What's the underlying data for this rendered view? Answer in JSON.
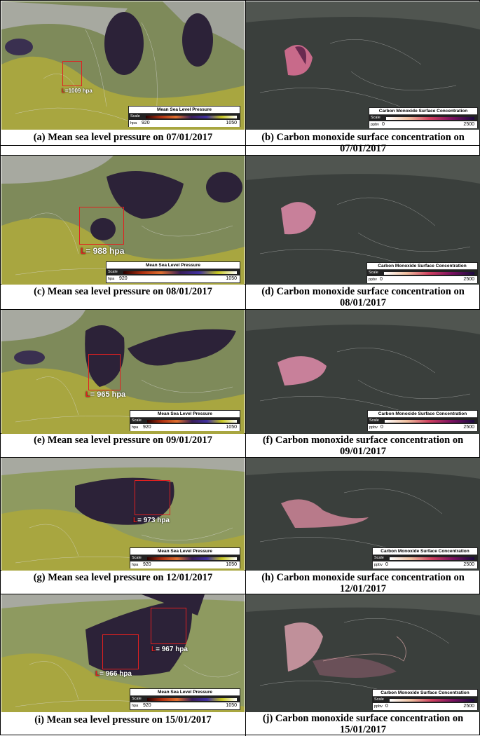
{
  "legends": {
    "mslp": {
      "title": "Mean Sea Level Pressure",
      "scale": "Scale",
      "unit": "hpa",
      "min": "920",
      "max": "1050"
    },
    "co": {
      "title": "Carbon Monoxide Surface Concentration",
      "scale": "Scale",
      "unit": "ppbv",
      "min": "0",
      "max": "2500"
    }
  },
  "rows": [
    {
      "left_caption": "(a) Mean sea level pressure on 07/01/2017",
      "right_caption": "(b) Carbon monoxide surface concentration on 07/01/2017",
      "annotations": [
        {
          "letter": "L",
          "text": "=1009 hpa"
        }
      ]
    },
    {
      "left_caption": "(c) Mean sea level pressure on 08/01/2017",
      "right_caption": "(d) Carbon monoxide surface concentration on 08/01/2017",
      "annotations": [
        {
          "letter": "L",
          "text": "= 988 hpa"
        }
      ]
    },
    {
      "left_caption": "(e) Mean sea level pressure on 09/01/2017",
      "right_caption": "(f) Carbon monoxide surface concentration on 09/01/2017",
      "annotations": [
        {
          "letter": "L",
          "text": "= 965 hpa"
        }
      ]
    },
    {
      "left_caption": "(g) Mean sea level pressure on 12/01/2017",
      "right_caption": "(h) Carbon monoxide surface concentration on 12/01/2017",
      "annotations": [
        {
          "letter": "L",
          "text": "= 973 hpa"
        }
      ]
    },
    {
      "left_caption": "(i) Mean sea level pressure on 15/01/2017",
      "right_caption": "(j) Carbon monoxide surface concentration on 15/01/2017",
      "annotations": [
        {
          "letter": "L",
          "text": "= 967 hpa"
        },
        {
          "letter": "L",
          "text": "= 966 hpa"
        }
      ]
    }
  ]
}
